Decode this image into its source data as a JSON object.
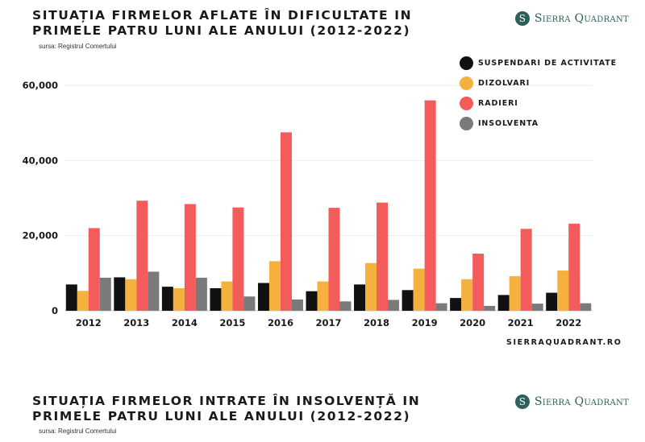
{
  "header": {
    "title_line1": "SITUAȚIA FIRMELOR AFLATE ÎN DIFICULTATE IN",
    "title_line2": "PRIMELE PATRU LUNI ALE ANULUI (2012-2022)",
    "source": "sursa: Registrul Comertului",
    "brand_initial": "S",
    "brand_name": "Sierra Quadrant",
    "brand_color": "#2f5f5a"
  },
  "footer": {
    "website": "SIERRAQUADRANT.RO"
  },
  "second_panel": {
    "title_line1": "SITUAȚIA FIRMELOR INTRATE ÎN INSOLVENȚĂ IN",
    "title_line2": "PRIMELE PATRU LUNI ALE ANULUI (2012-2022)",
    "source": "sursa: Registrul Comertului",
    "brand_initial": "S",
    "brand_name": "Sierra Quadrant"
  },
  "chart_data": {
    "type": "bar",
    "title": "SITUAȚIA FIRMELOR AFLATE ÎN DIFICULTATE IN PRIMELE PATRU LUNI ALE ANULUI (2012-2022)",
    "categories": [
      "2012",
      "2013",
      "2014",
      "2015",
      "2016",
      "2017",
      "2018",
      "2019",
      "2020",
      "2021",
      "2022"
    ],
    "ylim": [
      0,
      60000
    ],
    "yticks": [
      0,
      20000,
      40000,
      60000
    ],
    "ytick_labels": [
      "0",
      "20,000",
      "40,000",
      "60,000"
    ],
    "grid": true,
    "legend_position": "top-right",
    "series": [
      {
        "name": "SUSPENDARI DE ACTIVITATE",
        "color": "#111111",
        "values": [
          7000,
          8900,
          6400,
          6000,
          7400,
          5200,
          7000,
          5500,
          3400,
          4200,
          4800
        ]
      },
      {
        "name": "DIZOLVARI",
        "color": "#f5b13d",
        "values": [
          5300,
          8400,
          6000,
          7800,
          13200,
          7800,
          12700,
          11200,
          8400,
          9200,
          10700
        ]
      },
      {
        "name": "RADIERI",
        "color": "#f45b5b",
        "values": [
          22000,
          29300,
          28400,
          27500,
          47500,
          27400,
          28800,
          56000,
          15200,
          21800,
          23200
        ]
      },
      {
        "name": "INSOLVENTA",
        "color": "#7a7a7a",
        "values": [
          8800,
          10400,
          8800,
          3800,
          3000,
          2500,
          2900,
          2000,
          1300,
          1900,
          2000
        ]
      }
    ]
  }
}
